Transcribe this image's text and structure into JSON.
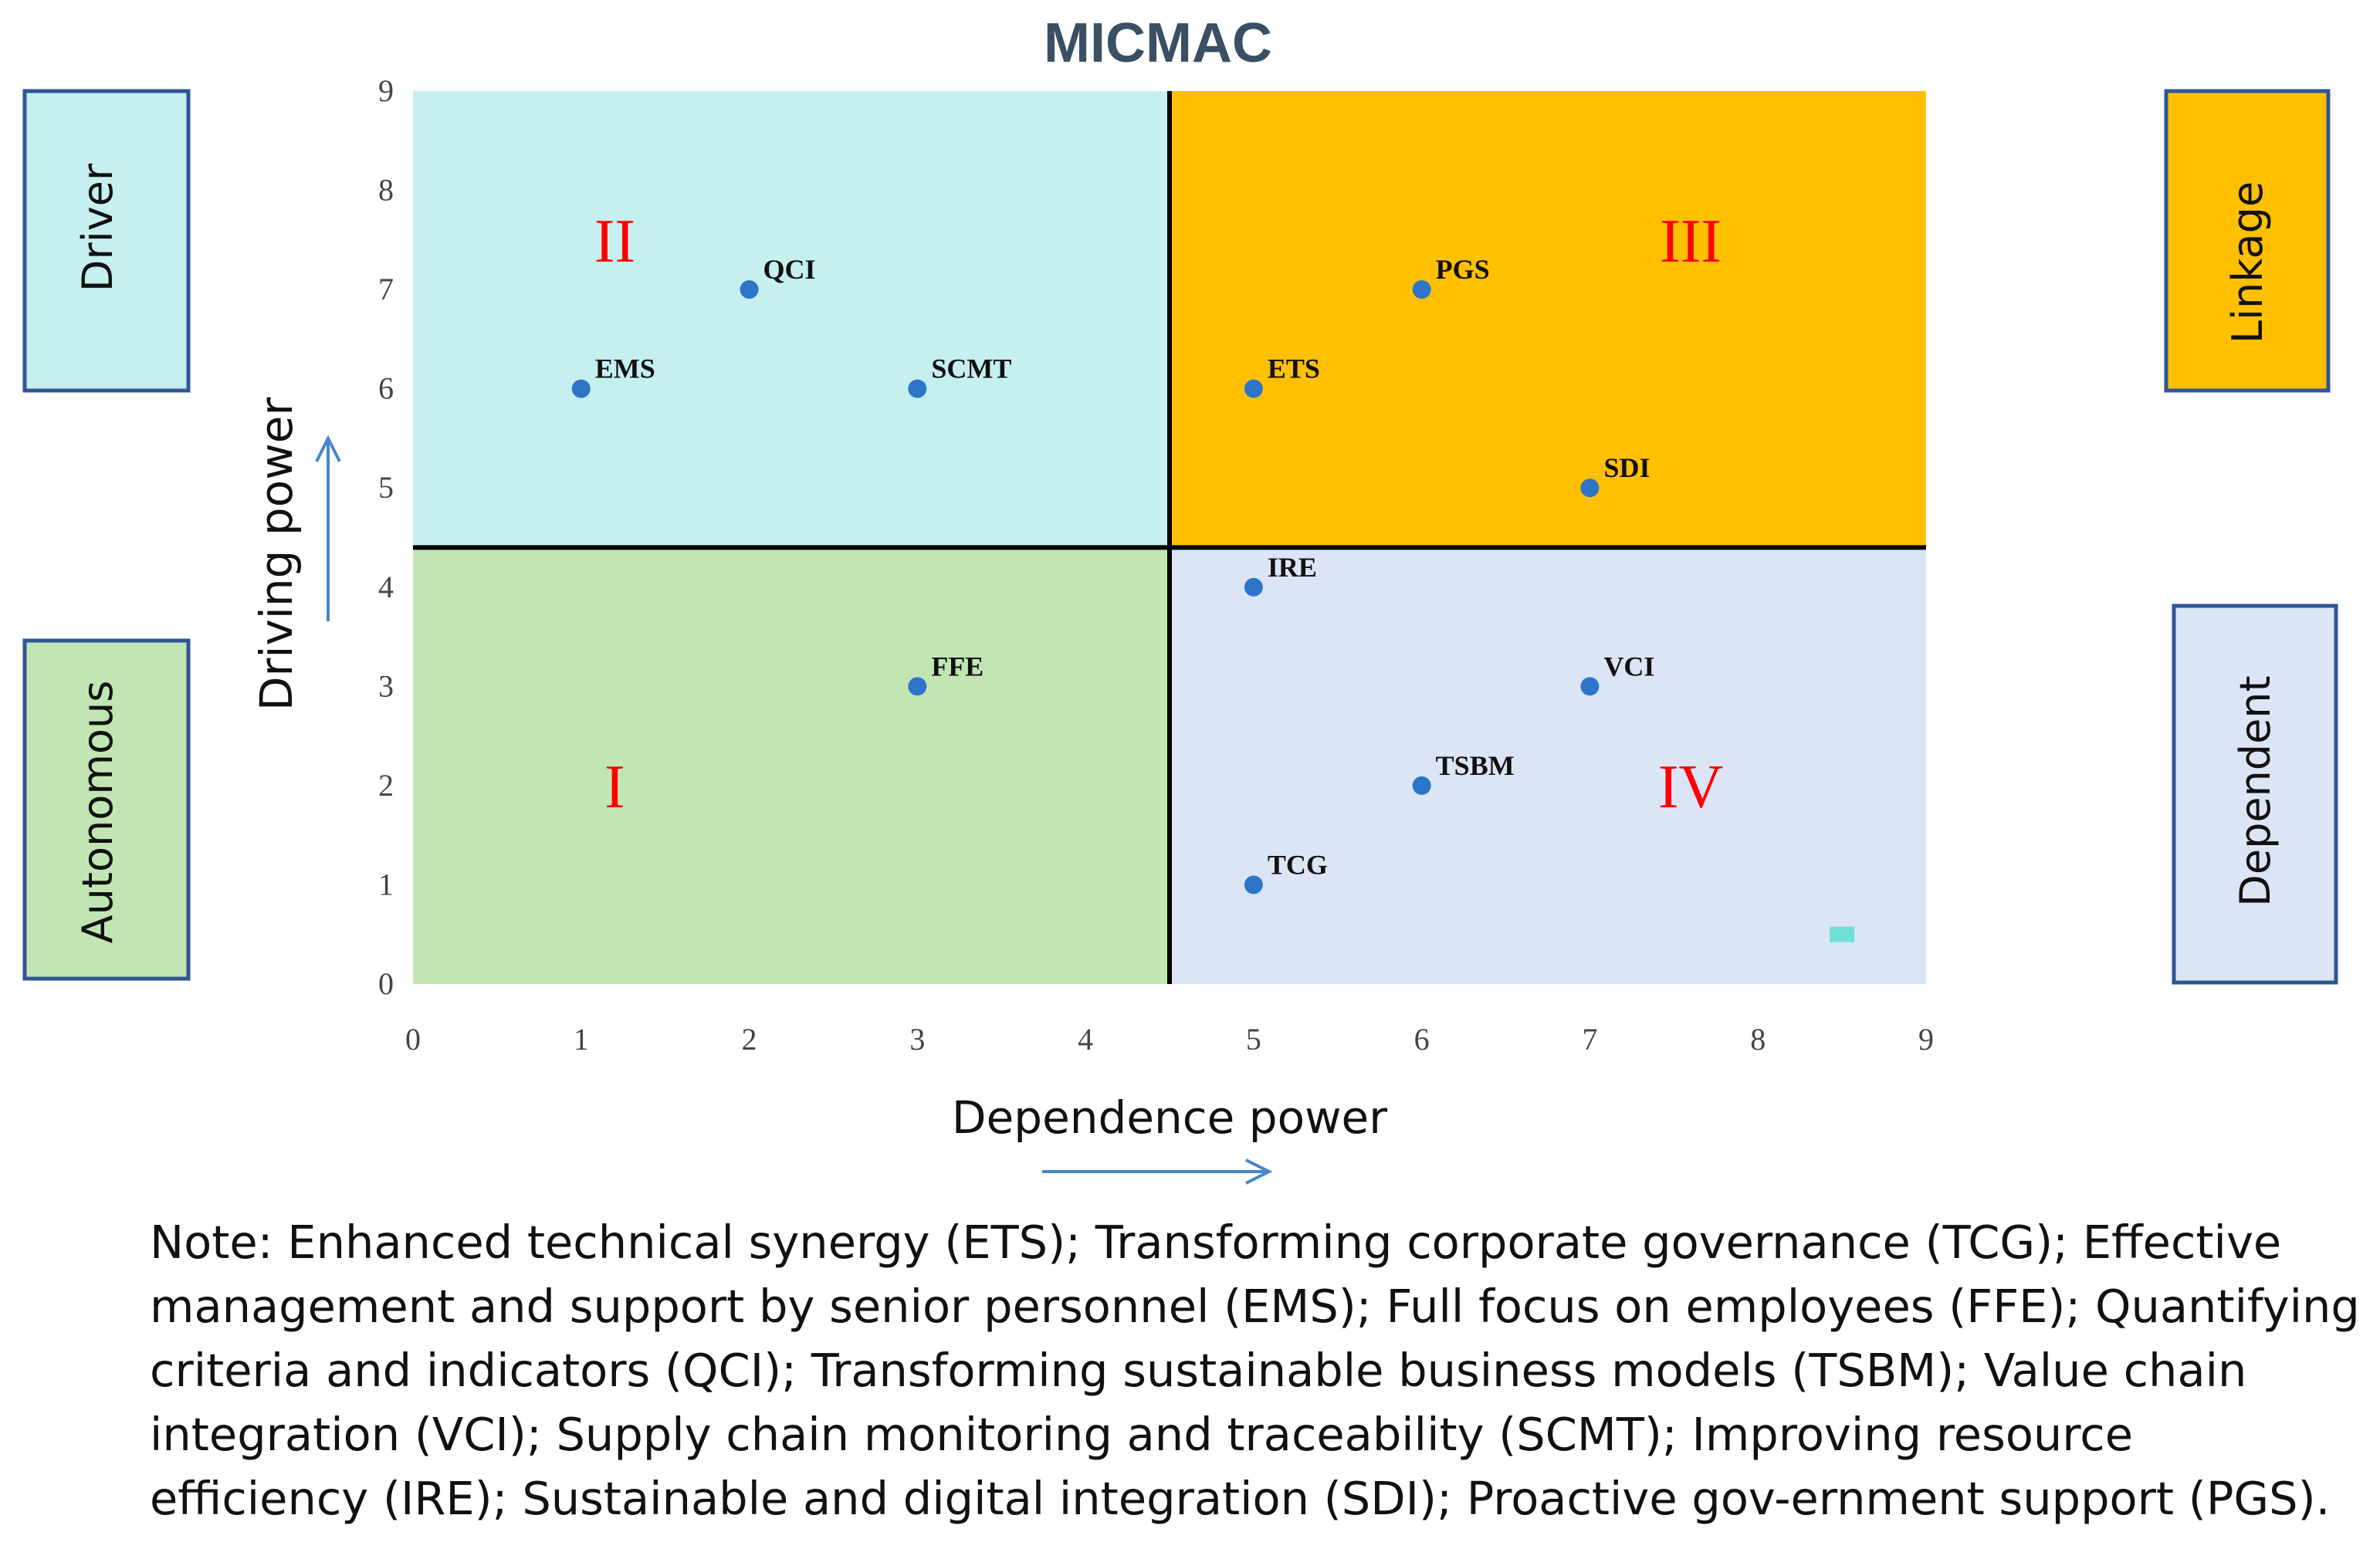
{
  "chart_data": {
    "type": "scatter",
    "title": "MICMAC",
    "xlabel": "Dependence power",
    "ylabel": "Driving power",
    "xlim": [
      0,
      9
    ],
    "ylim": [
      0,
      9
    ],
    "xticks": [
      "0",
      "1",
      "2",
      "3",
      "4",
      "5",
      "6",
      "7",
      "8",
      "9"
    ],
    "yticks": [
      "0",
      "1",
      "2",
      "3",
      "4",
      "5",
      "6",
      "7",
      "8",
      "9"
    ],
    "divider": {
      "x": 4.5,
      "y": 4.4
    },
    "quadrants": [
      {
        "id": "I",
        "numeral": "I",
        "category": "Autonomous",
        "color": "#c1e6b3",
        "label_at": [
          1.2,
          2.0
        ]
      },
      {
        "id": "II",
        "numeral": "II",
        "category": "Driver",
        "color": "#c5f0ef",
        "label_at": [
          1.2,
          7.5
        ]
      },
      {
        "id": "III",
        "numeral": "III",
        "category": "Linkage",
        "color": "#ffc000",
        "label_at": [
          7.6,
          7.5
        ]
      },
      {
        "id": "IV",
        "numeral": "IV",
        "category": "Dependent",
        "color": "#dbe5f5",
        "label_at": [
          7.6,
          2.0
        ]
      }
    ],
    "points": [
      {
        "label": "QCI",
        "x": 2,
        "y": 7
      },
      {
        "label": "EMS",
        "x": 1,
        "y": 6
      },
      {
        "label": "SCMT",
        "x": 3,
        "y": 6
      },
      {
        "label": "PGS",
        "x": 6,
        "y": 7
      },
      {
        "label": "ETS",
        "x": 5,
        "y": 6
      },
      {
        "label": "SDI",
        "x": 7,
        "y": 5
      },
      {
        "label": "IRE",
        "x": 5,
        "y": 4
      },
      {
        "label": "FFE",
        "x": 3,
        "y": 3
      },
      {
        "label": "VCI",
        "x": 7,
        "y": 3
      },
      {
        "label": "TSBM",
        "x": 6,
        "y": 2
      },
      {
        "label": "TCG",
        "x": 5,
        "y": 1
      }
    ],
    "marker_color": "#2e75c9",
    "stray_marker": {
      "x": 8.5,
      "y": 0.5,
      "color": "#6ee0d6"
    }
  },
  "colors": {
    "title": "#3a4f63",
    "numeral": "#ff0000",
    "arrow": "#4a86c8",
    "tick": "#444444",
    "side_border": "#2f5597"
  },
  "note": "Note: Enhanced technical synergy (ETS); Transforming corporate governance (TCG); Effective management and support by senior personnel (EMS); Full focus on employees (FFE); Quantifying criteria and indicators (QCI); Transforming sustainable business models (TSBM); Value chain integration (VCI); Supply chain monitoring and traceability (SCMT); Improving resource efficiency (IRE); Sustainable and digital integration (SDI); Proactive gov-ernment support (PGS)."
}
